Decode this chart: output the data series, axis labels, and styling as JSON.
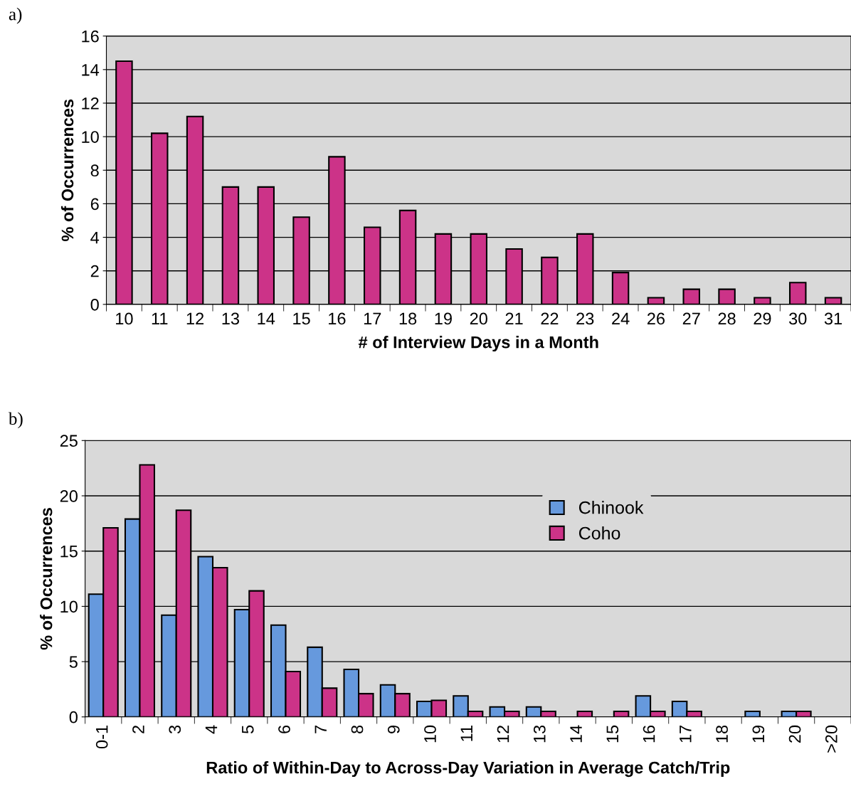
{
  "chart_data": [
    {
      "type": "bar",
      "annotations": [
        "a)"
      ],
      "xlabel": "# of Interview Days in a Month",
      "ylabel": "% of Occurrences",
      "categories": [
        "10",
        "11",
        "12",
        "13",
        "14",
        "15",
        "16",
        "17",
        "18",
        "19",
        "20",
        "21",
        "22",
        "23",
        "24",
        "26",
        "27",
        "28",
        "29",
        "30",
        "31"
      ],
      "series": [
        {
          "color": "#cc3388",
          "values": [
            14.5,
            10.2,
            11.2,
            7.0,
            7.0,
            5.2,
            8.8,
            4.6,
            5.6,
            4.2,
            4.2,
            3.3,
            2.8,
            4.2,
            1.9,
            0.4,
            0.9,
            0.9,
            0.4,
            1.3,
            0.4
          ]
        }
      ],
      "ylim": [
        0,
        16
      ],
      "yticks": [
        0,
        2,
        4,
        6,
        8,
        10,
        12,
        14,
        16
      ],
      "grid": "y",
      "legend": false
    },
    {
      "type": "bar",
      "annotations": [
        "b)"
      ],
      "xlabel": "Ratio of Within-Day to Across-Day Variation in Average Catch/Trip",
      "ylabel": "% of Occurrences",
      "categories": [
        "0-1",
        "2",
        "3",
        "4",
        "5",
        "6",
        "7",
        "8",
        "9",
        "10",
        "11",
        "12",
        "13",
        "14",
        "15",
        "16",
        "17",
        "18",
        "19",
        "20",
        ">20"
      ],
      "series": [
        {
          "name": "Chinook",
          "color": "#6699dd",
          "values": [
            11.1,
            17.9,
            9.2,
            14.5,
            9.7,
            8.3,
            6.3,
            4.3,
            2.9,
            1.4,
            1.9,
            0.9,
            0.9,
            0,
            0,
            1.9,
            1.4,
            0,
            0.5,
            0.5,
            0
          ]
        },
        {
          "name": "Coho",
          "color": "#cc3388",
          "values": [
            17.1,
            22.8,
            18.7,
            13.5,
            11.4,
            4.1,
            2.6,
            2.1,
            2.1,
            1.5,
            0.5,
            0.5,
            0.5,
            0.5,
            0.5,
            0.5,
            0.5,
            0,
            0,
            0.5,
            0
          ]
        }
      ],
      "ylim": [
        0,
        25
      ],
      "yticks": [
        0,
        5,
        10,
        15,
        20,
        25
      ],
      "grid": "y",
      "legend": "top right"
    }
  ]
}
